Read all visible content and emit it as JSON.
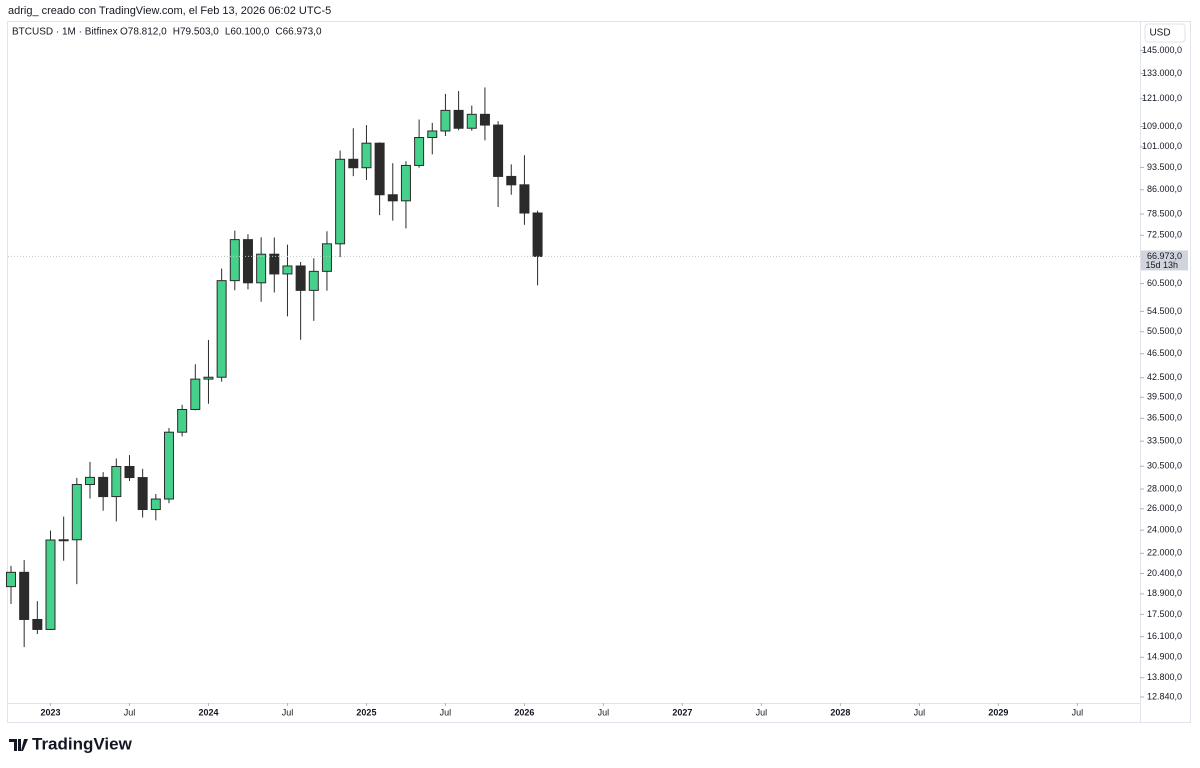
{
  "header": "adrig_  creado con TradingView.com, el Feb 13, 2026 06:02 UTC-5",
  "footer": "TradingView",
  "chart_data": {
    "type": "candlestick",
    "legend": {
      "symbol": "BTCUSD · 1M · Bitfinex",
      "values": [
        "O78.812,0",
        "H79.503,0",
        "L60.100,0",
        "C66.973,0"
      ]
    },
    "currency": "USD",
    "log_scale": true,
    "up_color": "#45d08b",
    "down_color": "#2b2b2b",
    "x": [
      "2022-10",
      "2022-11",
      "2022-12",
      "2023-01",
      "2023-02",
      "2023-03",
      "2023-04",
      "2023-05",
      "2023-06",
      "2023-07",
      "2023-08",
      "2023-09",
      "2023-10",
      "2023-11",
      "2023-12",
      "2024-01",
      "2024-02",
      "2024-03",
      "2024-04",
      "2024-05",
      "2024-06",
      "2024-07",
      "2024-08",
      "2024-09",
      "2024-10",
      "2024-11",
      "2024-12",
      "2025-01",
      "2025-02",
      "2025-03",
      "2025-04",
      "2025-05",
      "2025-06",
      "2025-07",
      "2025-08",
      "2025-09",
      "2025-10",
      "2025-11",
      "2025-12",
      "2026-01",
      "2026-02"
    ],
    "open": [
      19420,
      20490,
      17170,
      16540,
      23130,
      23150,
      28480,
      29250,
      27220,
      30470,
      29230,
      25930,
      26970,
      34650,
      37730,
      42280,
      42580,
      61160,
      71330,
      60670,
      67540,
      62720,
      64620,
      58970,
      63330,
      70220,
      96400,
      93400,
      102400,
      84400,
      82500,
      94200,
      104600,
      107200,
      115800,
      108300,
      114100,
      109600,
      90400,
      87600,
      78812
    ],
    "high": [
      20990,
      21450,
      18390,
      23960,
      25250,
      29190,
      31000,
      29830,
      31400,
      31800,
      30200,
      27480,
      35200,
      38400,
      44700,
      48970,
      64000,
      73800,
      72800,
      71980,
      71900,
      70000,
      65600,
      66500,
      73600,
      99600,
      108300,
      109600,
      102700,
      95000,
      95700,
      111900,
      110500,
      123200,
      124500,
      117900,
      126200,
      111200,
      94600,
      97900,
      79503
    ],
    "low": [
      18200,
      15480,
      16260,
      16500,
      21400,
      19600,
      27020,
      25810,
      24800,
      28860,
      25160,
      24900,
      26550,
      34110,
      37600,
      38550,
      41880,
      59000,
      59200,
      56500,
      58500,
      53500,
      49000,
      52600,
      58900,
      66800,
      90500,
      89200,
      78200,
      76600,
      74400,
      93400,
      98200,
      105200,
      107500,
      107300,
      103500,
      80600,
      84400,
      75400,
      60100
    ],
    "close": [
      20490,
      17170,
      16540,
      23130,
      23150,
      28480,
      29250,
      27220,
      30470,
      29230,
      25930,
      26970,
      34650,
      37730,
      42280,
      42580,
      61160,
      71330,
      60670,
      67540,
      62720,
      64620,
      58970,
      63330,
      70220,
      96400,
      93400,
      102400,
      84400,
      82500,
      94200,
      104600,
      107200,
      115800,
      108300,
      114100,
      109600,
      90400,
      87600,
      78812,
      66973
    ],
    "xlim": [
      "2022-10",
      "2029-11"
    ],
    "xticks": [
      {
        "value": "2023-01",
        "label": "2023"
      },
      {
        "value": "2023-07",
        "label": "Jul"
      },
      {
        "value": "2024-01",
        "label": "2024"
      },
      {
        "value": "2024-07",
        "label": "Jul"
      },
      {
        "value": "2025-01",
        "label": "2025"
      },
      {
        "value": "2025-07",
        "label": "Jul"
      },
      {
        "value": "2026-01",
        "label": "2026"
      },
      {
        "value": "2026-07",
        "label": "Jul"
      },
      {
        "value": "2027-01",
        "label": "2027"
      },
      {
        "value": "2027-07",
        "label": "Jul"
      },
      {
        "value": "2028-01",
        "label": "2028"
      },
      {
        "value": "2028-07",
        "label": "Jul"
      },
      {
        "value": "2029-01",
        "label": "2029"
      },
      {
        "value": "2029-07",
        "label": "Jul"
      }
    ],
    "ylim": [
      11690,
      161300
    ],
    "yticks": [
      {
        "value": 145000,
        "label": "145.000,0"
      },
      {
        "value": 133000,
        "label": "133.000,0"
      },
      {
        "value": 121000,
        "label": "121.000,0"
      },
      {
        "value": 109000,
        "label": "109.000,0"
      },
      {
        "value": 101000,
        "label": "101.000,0"
      },
      {
        "value": 93500,
        "label": "93.500,0"
      },
      {
        "value": 86000,
        "label": "86.000,0"
      },
      {
        "value": 78500,
        "label": "78.500,0"
      },
      {
        "value": 72500,
        "label": "72.500,0"
      },
      {
        "value": 60500,
        "label": "60.500,0"
      },
      {
        "value": 54500,
        "label": "54.500,0"
      },
      {
        "value": 50500,
        "label": "50.500,0"
      },
      {
        "value": 46500,
        "label": "46.500,0"
      },
      {
        "value": 42500,
        "label": "42.500,0"
      },
      {
        "value": 39500,
        "label": "39.500,0"
      },
      {
        "value": 36500,
        "label": "36.500,0"
      },
      {
        "value": 33500,
        "label": "33.500,0"
      },
      {
        "value": 30500,
        "label": "30.500,0"
      },
      {
        "value": 28000,
        "label": "28.000,0"
      },
      {
        "value": 26000,
        "label": "26.000,0"
      },
      {
        "value": 24000,
        "label": "24.000,0"
      },
      {
        "value": 22000,
        "label": "22.000,0"
      },
      {
        "value": 20400,
        "label": "20.400,0"
      },
      {
        "value": 18900,
        "label": "18.900,0"
      },
      {
        "value": 17500,
        "label": "17.500,0"
      },
      {
        "value": 16100,
        "label": "16.100,0"
      },
      {
        "value": 14900,
        "label": "14.900,0"
      },
      {
        "value": 13800,
        "label": "13.800,0"
      },
      {
        "value": 12840,
        "label": "12.840,0"
      }
    ],
    "last_price": {
      "value": 66973,
      "label": "66.973,0",
      "countdown": "15d 13h"
    }
  }
}
